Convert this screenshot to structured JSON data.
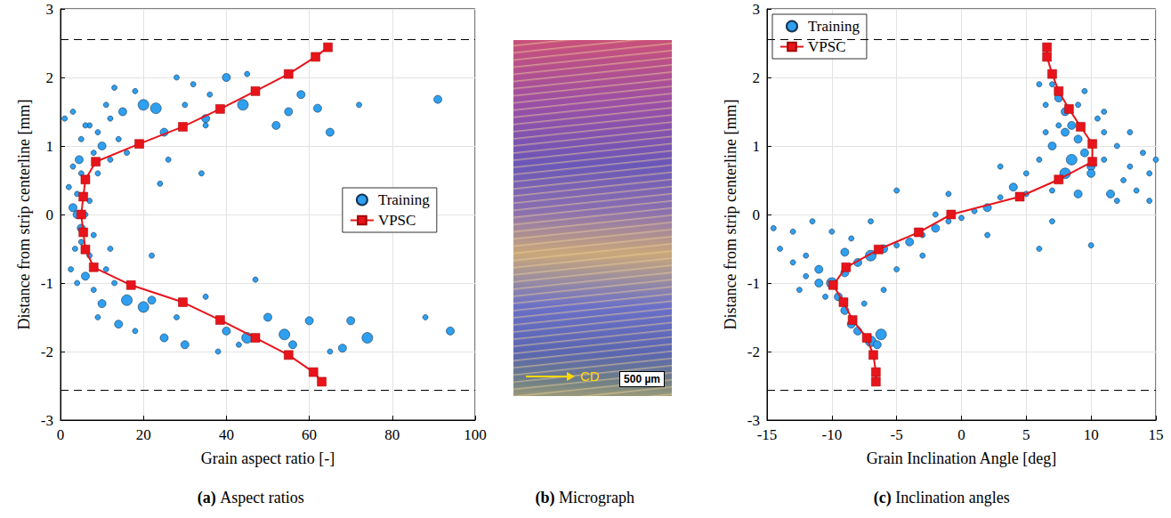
{
  "chart_data": [
    {
      "type": "scatter",
      "title": "(a) Aspect ratios",
      "x_label": "Grain aspect ratio [-]",
      "y_label": "Distance from strip centerline [mm]",
      "xlim": [
        0,
        100
      ],
      "xticks": [
        0,
        20,
        40,
        60,
        80,
        100
      ],
      "ylim": [
        -3,
        3
      ],
      "yticks": [
        -3,
        -2,
        -1,
        0,
        1,
        2,
        3
      ],
      "grid": true,
      "legend": "right",
      "hlines": [
        2.56,
        -2.56
      ],
      "series": [
        {
          "name": "Training",
          "type": "scatter",
          "color": "#2f9ff0",
          "marker": "circle",
          "x": [
            3,
            4,
            5,
            6,
            3.5,
            7,
            4.5,
            8,
            2.5,
            6,
            5,
            9,
            10,
            12,
            7,
            3,
            15,
            11,
            20,
            23,
            18,
            25,
            30,
            35,
            40,
            44,
            52,
            55,
            58,
            65,
            62,
            72,
            91,
            8,
            10,
            13,
            14,
            16,
            20,
            22,
            18,
            25,
            28,
            30,
            35,
            40,
            43,
            45,
            50,
            54,
            56,
            60,
            68,
            70,
            74,
            88,
            94,
            65,
            38,
            5,
            4,
            6,
            2,
            7,
            9,
            8,
            3,
            5,
            4,
            6,
            12,
            14,
            16,
            11,
            9,
            26,
            24,
            34,
            35,
            47,
            32,
            28,
            22,
            12,
            1,
            13,
            36,
            45
          ],
          "values": [
            0.1,
            0.3,
            -0.2,
            0.5,
            -0.5,
            0.2,
            0.8,
            0.9,
            -0.8,
            -0.9,
            1.1,
            1.2,
            1.0,
            1.4,
            1.3,
            1.5,
            1.5,
            1.6,
            1.6,
            1.55,
            1.8,
            1.2,
            1.6,
            1.4,
            2.0,
            1.6,
            1.3,
            1.5,
            1.75,
            1.2,
            1.55,
            1.6,
            1.68,
            -1.1,
            -1.3,
            -1.0,
            -1.6,
            -1.25,
            -1.35,
            -1.25,
            -1.7,
            -1.8,
            -1.5,
            -1.9,
            -1.2,
            -1.7,
            -1.9,
            -1.8,
            -1.5,
            -1.75,
            -1.9,
            -1.55,
            -1.95,
            -1.55,
            -1.8,
            -1.5,
            -1.7,
            -2.0,
            -2.0,
            -0.4,
            0.0,
            0.0,
            0.4,
            -0.6,
            0.6,
            -0.3,
            0.7,
            0.6,
            -1.0,
            1.3,
            0.8,
            1.1,
            0.9,
            -0.8,
            -1.5,
            0.8,
            0.45,
            0.6,
            1.3,
            -0.95,
            1.9,
            2.0,
            -0.6,
            -0.5,
            1.4,
            1.85,
            1.75,
            2.05
          ],
          "sizes": [
            2,
            1,
            2,
            1,
            1,
            1,
            2,
            1,
            1,
            2,
            1,
            1,
            2,
            1,
            1,
            1,
            2,
            1,
            3,
            3,
            1,
            2,
            1,
            2,
            2,
            3,
            2,
            2,
            2,
            2,
            2,
            1,
            2,
            1,
            2,
            1,
            2,
            3,
            3,
            2,
            1,
            2,
            1,
            2,
            1,
            2,
            1,
            3,
            2,
            3,
            2,
            2,
            2,
            2,
            3,
            1,
            2,
            1,
            1,
            1,
            2,
            1,
            1,
            1,
            1,
            1,
            1,
            1,
            1,
            1,
            1,
            1,
            1,
            1,
            1,
            1,
            1,
            1,
            1,
            1,
            1,
            1,
            1,
            1,
            1,
            1,
            1,
            1
          ]
        },
        {
          "name": "VPSC",
          "type": "line",
          "color": "#e8141b",
          "marker": "square",
          "x": [
            64.5,
            61.5,
            55,
            47,
            38.5,
            29.5,
            19,
            8.5,
            6,
            5.5,
            5,
            5.5,
            6,
            8,
            17,
            29.5,
            38.5,
            47,
            55,
            61,
            63
          ],
          "values": [
            2.44,
            2.3,
            2.05,
            1.8,
            1.54,
            1.28,
            1.03,
            0.77,
            0.51,
            0.26,
            0,
            -0.26,
            -0.51,
            -0.77,
            -1.03,
            -1.28,
            -1.54,
            -1.8,
            -2.05,
            -2.3,
            -2.44
          ]
        }
      ]
    },
    {
      "type": "scatter",
      "title": "(c) Inclination angles",
      "x_label": "Grain Inclination Angle [deg]",
      "y_label": "Distance from strip centerline [mm]",
      "xlim": [
        -15,
        15
      ],
      "xticks": [
        -15,
        -10,
        -5,
        0,
        5,
        10,
        15
      ],
      "ylim": [
        -3,
        3
      ],
      "yticks": [
        -3,
        -2,
        -1,
        0,
        1,
        2,
        3
      ],
      "grid": true,
      "legend": "upper left",
      "hlines": [
        2.56,
        -2.56
      ],
      "series": [
        {
          "name": "Training",
          "type": "scatter",
          "color": "#2f9ff0",
          "marker": "circle",
          "x": [
            7,
            7.5,
            8,
            8.5,
            9,
            9.5,
            10,
            11,
            12,
            13,
            14,
            6.5,
            7,
            6,
            8,
            11.5,
            12.5,
            14.5,
            10.5,
            9,
            6.5,
            7.5,
            5,
            4,
            3,
            2,
            1,
            0,
            -1,
            -2,
            -3,
            -4,
            -5,
            -6,
            -7,
            -8,
            -9,
            -10,
            -11,
            -12,
            -13,
            -14,
            -9.5,
            -9,
            -8.5,
            -8,
            -7,
            -6.5,
            -6.2,
            -10.5,
            -11,
            -12,
            -8.5,
            -10,
            -13,
            -14.5,
            -5,
            -6,
            -7.5,
            9,
            7,
            12,
            13.5,
            14.5,
            -3,
            -2,
            2,
            5,
            6,
            -5,
            -1,
            3,
            -11.5,
            -7,
            10,
            8.5,
            11,
            7,
            10,
            -12.5,
            -9,
            8,
            9.5,
            6,
            11,
            13,
            15
          ],
          "values": [
            1.9,
            1.7,
            1.5,
            1.3,
            1.1,
            0.9,
            0.7,
            0.8,
            1.0,
            0.7,
            0.9,
            1.2,
            1.0,
            0.8,
            0.6,
            0.3,
            0.5,
            0.6,
            1.4,
            1.6,
            1.6,
            1.3,
            0.6,
            0.4,
            0.25,
            0.1,
            0.05,
            -0.05,
            -0.1,
            -0.2,
            -0.3,
            -0.4,
            -0.45,
            -0.5,
            -0.6,
            -0.7,
            -0.85,
            -1.0,
            -0.8,
            -0.6,
            -0.7,
            -0.5,
            -1.2,
            -1.4,
            -1.6,
            -1.7,
            -1.85,
            -1.9,
            -1.75,
            -1.2,
            -1.0,
            -0.9,
            -0.35,
            -0.25,
            -0.25,
            -0.2,
            -0.8,
            -1.1,
            -1.3,
            0.3,
            0.35,
            0.2,
            0.35,
            0.2,
            -0.6,
            0.0,
            -0.3,
            0.3,
            -0.5,
            0.35,
            0.3,
            0.7,
            -0.1,
            -0.1,
            0.6,
            0.8,
            1.2,
            -0.1,
            -0.45,
            -1.1,
            -0.55,
            1.2,
            1.8,
            1.9,
            1.5,
            1.2,
            0.8
          ],
          "sizes": [
            1,
            2,
            2,
            2,
            2,
            2,
            2,
            1,
            1,
            1,
            1,
            1,
            2,
            1,
            3,
            2,
            1,
            1,
            1,
            1,
            1,
            1,
            1,
            2,
            1,
            2,
            1,
            1,
            1,
            2,
            1,
            2,
            1,
            2,
            3,
            2,
            2,
            3,
            2,
            1,
            1,
            1,
            2,
            2,
            2,
            2,
            3,
            2,
            3,
            1,
            2,
            1,
            1,
            1,
            1,
            1,
            1,
            1,
            1,
            2,
            1,
            1,
            1,
            1,
            1,
            1,
            1,
            1,
            1,
            1,
            1,
            1,
            1,
            1,
            2,
            3,
            1,
            1,
            1,
            1,
            2,
            2,
            1,
            1,
            1,
            1,
            1
          ]
        },
        {
          "name": "VPSC",
          "type": "line",
          "color": "#e8141b",
          "marker": "square",
          "x": [
            6.6,
            6.6,
            7,
            7.5,
            8.3,
            9.2,
            10.1,
            10.1,
            7.5,
            4.5,
            -0.8,
            -3.3,
            -6.4,
            -8.9,
            -9.9,
            -9.1,
            -8.4,
            -7.3,
            -6.8,
            -6.6,
            -6.6
          ],
          "values": [
            2.44,
            2.3,
            2.05,
            1.8,
            1.54,
            1.28,
            1.03,
            0.77,
            0.51,
            0.26,
            0,
            -0.26,
            -0.51,
            -0.77,
            -1.03,
            -1.28,
            -1.54,
            -1.8,
            -2.05,
            -2.3,
            -2.44
          ]
        }
      ]
    }
  ],
  "micrograph": {
    "title": "(b) Micrograph",
    "direction_label": "CD",
    "scale_bar": "500 µm"
  }
}
